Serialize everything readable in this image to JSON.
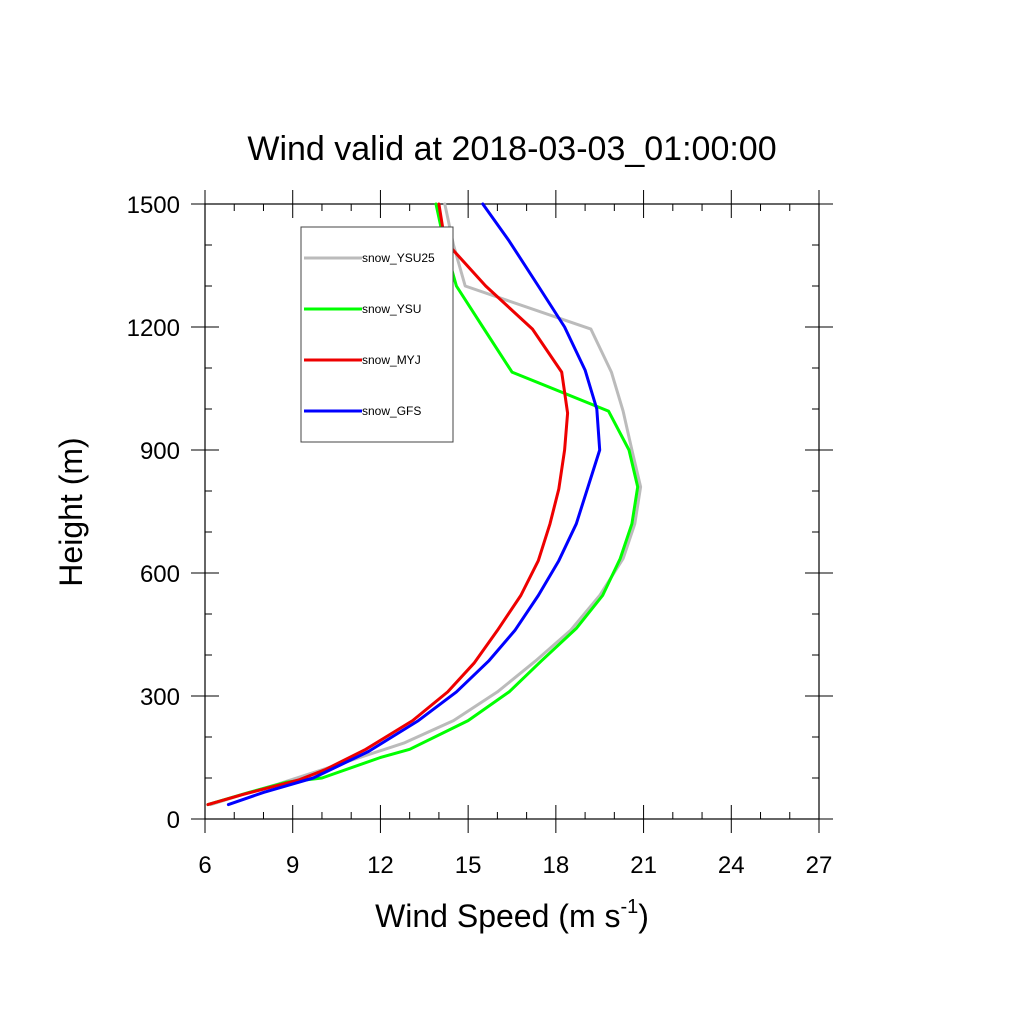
{
  "chart_data": {
    "type": "line",
    "title": "Wind valid at 2018-03-03_01:00:00",
    "xlabel": "Wind Speed (m s",
    "xlabel_sup": "-1",
    "xlabel_end": ")",
    "ylabel": "Height (m)",
    "xlim": [
      6,
      27
    ],
    "ylim": [
      0,
      1500
    ],
    "xticks": [
      6,
      9,
      12,
      15,
      18,
      21,
      24,
      27
    ],
    "yticks": [
      0,
      300,
      600,
      900,
      1200,
      1500
    ],
    "legend_position": "top-left",
    "series": [
      {
        "name": "snow_YSU25",
        "color": "#bbbbbb",
        "points": [
          [
            6.2,
            35
          ],
          [
            7.3,
            60
          ],
          [
            8.5,
            85
          ],
          [
            10.0,
            120
          ],
          [
            12.8,
            185
          ],
          [
            14.5,
            240
          ],
          [
            16.0,
            310
          ],
          [
            17.3,
            385
          ],
          [
            18.5,
            460
          ],
          [
            19.5,
            545
          ],
          [
            20.3,
            635
          ],
          [
            20.7,
            720
          ],
          [
            20.9,
            810
          ],
          [
            20.6,
            900
          ],
          [
            20.3,
            995
          ],
          [
            19.9,
            1090
          ],
          [
            19.2,
            1195
          ],
          [
            14.9,
            1300
          ],
          [
            14.5,
            1400
          ],
          [
            14.2,
            1500
          ]
        ]
      },
      {
        "name": "snow_YSU",
        "color": "#00ff00",
        "points": [
          [
            6.1,
            35
          ],
          [
            7.5,
            65
          ],
          [
            8.8,
            90
          ],
          [
            10.0,
            100
          ],
          [
            12.0,
            150
          ],
          [
            13.0,
            170
          ],
          [
            15.0,
            240
          ],
          [
            16.4,
            310
          ],
          [
            17.5,
            385
          ],
          [
            18.7,
            465
          ],
          [
            19.6,
            545
          ],
          [
            20.2,
            635
          ],
          [
            20.6,
            720
          ],
          [
            20.8,
            810
          ],
          [
            20.5,
            900
          ],
          [
            19.8,
            995
          ],
          [
            16.5,
            1090
          ],
          [
            15.5,
            1200
          ],
          [
            14.6,
            1300
          ],
          [
            14.2,
            1400
          ],
          [
            13.9,
            1500
          ]
        ]
      },
      {
        "name": "snow_MYJ",
        "color": "#ee0000",
        "points": [
          [
            6.1,
            35
          ],
          [
            7.3,
            60
          ],
          [
            9.2,
            95
          ],
          [
            10.1,
            120
          ],
          [
            11.5,
            170
          ],
          [
            13.1,
            240
          ],
          [
            14.3,
            310
          ],
          [
            15.2,
            380
          ],
          [
            16.0,
            460
          ],
          [
            16.8,
            545
          ],
          [
            17.4,
            630
          ],
          [
            17.8,
            720
          ],
          [
            18.1,
            805
          ],
          [
            18.3,
            900
          ],
          [
            18.4,
            990
          ],
          [
            18.2,
            1090
          ],
          [
            17.2,
            1195
          ],
          [
            15.6,
            1300
          ],
          [
            14.2,
            1410
          ],
          [
            14.0,
            1500
          ]
        ]
      },
      {
        "name": "snow_GFS",
        "color": "#0000ff",
        "points": [
          [
            6.8,
            35
          ],
          [
            8.0,
            65
          ],
          [
            9.7,
            100
          ],
          [
            11.6,
            165
          ],
          [
            13.3,
            240
          ],
          [
            14.6,
            310
          ],
          [
            15.7,
            385
          ],
          [
            16.6,
            460
          ],
          [
            17.4,
            545
          ],
          [
            18.1,
            630
          ],
          [
            18.7,
            720
          ],
          [
            19.1,
            810
          ],
          [
            19.5,
            900
          ],
          [
            19.4,
            1000
          ],
          [
            19.0,
            1095
          ],
          [
            18.3,
            1200
          ],
          [
            17.4,
            1300
          ],
          [
            16.4,
            1410
          ],
          [
            15.5,
            1500
          ]
        ]
      }
    ]
  }
}
